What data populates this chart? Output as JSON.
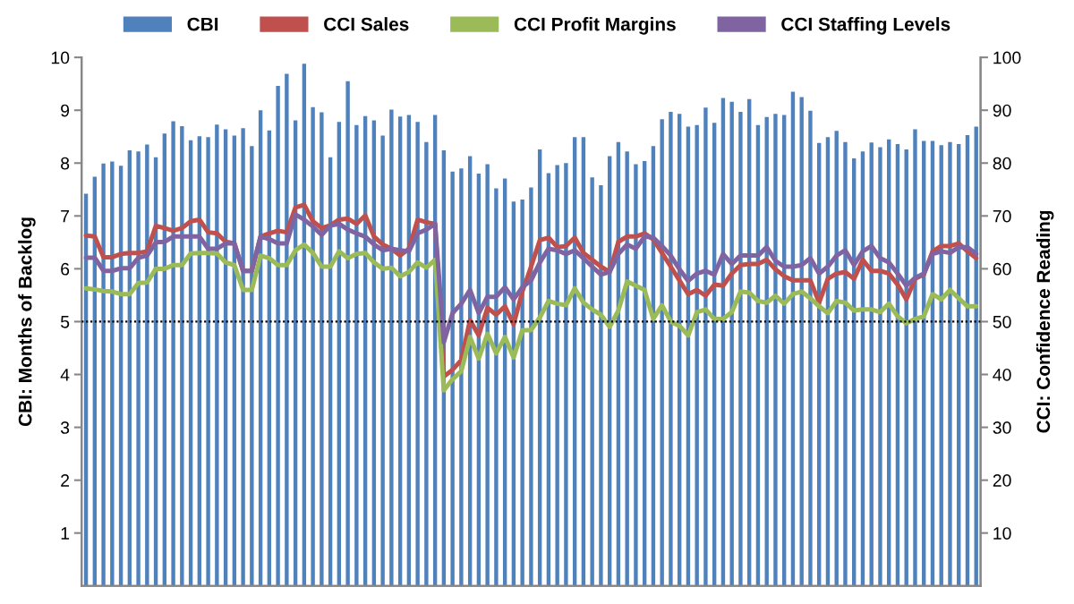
{
  "chart_data": {
    "type": "bar",
    "categories": [
      null,
      null,
      null,
      null,
      null,
      null,
      null,
      null,
      null,
      null,
      null,
      null,
      null,
      null,
      null,
      null,
      null,
      null,
      null,
      null,
      null,
      null,
      null,
      null,
      null,
      null,
      null,
      null,
      null,
      null,
      null,
      null,
      null,
      null,
      null,
      null,
      null,
      null,
      null,
      null,
      null,
      null,
      null,
      null,
      null,
      null,
      null,
      null,
      null,
      null,
      null,
      null,
      null,
      null,
      null,
      null,
      null,
      null,
      null,
      null,
      null,
      null,
      null,
      null,
      null,
      null,
      null,
      null,
      null,
      null,
      null,
      null,
      null,
      null,
      null,
      null,
      null,
      null,
      null,
      null,
      null,
      null,
      null,
      null,
      null,
      null,
      null,
      null,
      null,
      null,
      null,
      null,
      null,
      null,
      null,
      null,
      null,
      null,
      null,
      null,
      null,
      null,
      null
    ],
    "ylabel": "CBI: Months of Backlog",
    "y2label": "CCI: Confidence Reading",
    "ylim": [
      0,
      10
    ],
    "yticks": [
      1,
      2,
      3,
      4,
      5,
      6,
      7,
      8,
      9,
      10
    ],
    "y2lim": [
      0,
      100
    ],
    "y2ticks": [
      10,
      20,
      30,
      40,
      50,
      60,
      70,
      80,
      90,
      100
    ],
    "legend": "top",
    "series": [
      {
        "name": "CBI",
        "color": "#4f81bd",
        "values": [
          7.42,
          7.74,
          7.99,
          8.03,
          7.95,
          8.24,
          8.22,
          8.35,
          8.11,
          8.56,
          8.79,
          8.7,
          8.43,
          8.51,
          8.49,
          8.73,
          8.64,
          8.52,
          8.66,
          8.32,
          9.0,
          8.62,
          9.46,
          9.69,
          8.81,
          9.88,
          9.06,
          8.96,
          8.11,
          8.78,
          9.55,
          8.72,
          8.89,
          8.81,
          8.52,
          9.01,
          8.88,
          8.91,
          8.78,
          8.4,
          8.91,
          8.24,
          7.84,
          7.9,
          8.13,
          7.8,
          7.98,
          7.52,
          7.71,
          7.27,
          7.31,
          7.54,
          8.26,
          7.81,
          7.96,
          8.0,
          8.49,
          8.49,
          7.73,
          7.58,
          8.13,
          8.4,
          8.22,
          7.98,
          8.04,
          8.32,
          8.83,
          8.97,
          8.93,
          8.69,
          8.72,
          9.05,
          8.76,
          9.23,
          9.16,
          8.97,
          9.21,
          8.72,
          8.87,
          8.93,
          8.91,
          9.35,
          9.25,
          8.99,
          8.38,
          8.49,
          8.61,
          8.4,
          8.09,
          8.22,
          8.39,
          8.3,
          8.45,
          8.36,
          8.26,
          8.64,
          8.42,
          8.42,
          8.34,
          8.4,
          8.36,
          8.53,
          8.69
        ]
      },
      {
        "name": "CCI Sales",
        "type": "line",
        "axis": "y2",
        "color": "#c0504d",
        "values": [
          66.3,
          66.1,
          62.2,
          62.2,
          62.8,
          63.0,
          63.0,
          63.3,
          68.1,
          67.7,
          67.2,
          67.7,
          69.0,
          69.3,
          66.9,
          66.7,
          65.1,
          64.8,
          59.6,
          59.6,
          66.1,
          66.7,
          67.2,
          66.9,
          71.6,
          72.1,
          69.0,
          67.7,
          68.2,
          69.3,
          69.5,
          68.5,
          70.1,
          66.1,
          64.6,
          63.8,
          62.5,
          63.8,
          69.3,
          68.8,
          68.5,
          39.6,
          40.9,
          42.7,
          50.3,
          47.4,
          52.6,
          51.3,
          52.9,
          49.5,
          55.7,
          60.4,
          65.4,
          65.9,
          64.1,
          64.3,
          65.9,
          63.0,
          61.7,
          60.4,
          59.4,
          65.1,
          66.1,
          66.1,
          66.7,
          65.6,
          63.0,
          60.4,
          57.8,
          55.2,
          56.0,
          54.9,
          57.0,
          56.8,
          59.1,
          60.7,
          60.9,
          60.9,
          61.7,
          59.9,
          58.6,
          57.8,
          57.8,
          57.8,
          53.6,
          58.1,
          59.1,
          59.4,
          58.1,
          61.7,
          59.6,
          59.6,
          59.1,
          57.0,
          54.2,
          58.1,
          58.9,
          63.3,
          64.3,
          64.3,
          64.8,
          63.3,
          62.0
        ]
      },
      {
        "name": "CCI Profit Margins",
        "type": "line",
        "axis": "y2",
        "color": "#9bbb59",
        "values": [
          56.3,
          56.1,
          55.8,
          55.7,
          55.2,
          55.2,
          57.3,
          57.4,
          60.0,
          60.0,
          60.7,
          60.7,
          62.9,
          63.0,
          63.0,
          62.9,
          61.2,
          60.7,
          56.0,
          56.0,
          62.5,
          62.0,
          60.7,
          60.7,
          63.5,
          64.6,
          63.0,
          60.4,
          60.4,
          63.3,
          62.0,
          62.8,
          63.0,
          61.2,
          60.0,
          60.2,
          58.6,
          59.4,
          61.2,
          60.2,
          61.7,
          37.0,
          39.1,
          40.6,
          47.1,
          43.0,
          47.7,
          44.0,
          47.1,
          43.2,
          48.4,
          48.4,
          50.8,
          53.9,
          53.4,
          53.1,
          56.3,
          53.6,
          52.3,
          51.3,
          49.0,
          52.1,
          57.6,
          56.8,
          56.0,
          50.5,
          53.1,
          50.0,
          49.2,
          47.4,
          51.8,
          52.3,
          50.5,
          50.5,
          51.8,
          55.7,
          55.5,
          53.9,
          53.6,
          54.9,
          53.4,
          55.2,
          55.7,
          54.4,
          52.9,
          51.6,
          53.9,
          53.6,
          52.1,
          52.3,
          52.3,
          51.8,
          53.4,
          51.0,
          49.7,
          50.5,
          51.0,
          55.2,
          54.2,
          56.0,
          54.4,
          52.9,
          52.9
        ]
      },
      {
        "name": "CCI Staffing Levels",
        "type": "line",
        "axis": "y2",
        "color": "#8064a2",
        "values": [
          62.1,
          62.1,
          59.6,
          59.6,
          60.1,
          60.1,
          62.1,
          62.5,
          65.0,
          65.1,
          66.1,
          66.1,
          66.1,
          66.1,
          63.8,
          63.8,
          64.8,
          64.8,
          59.6,
          59.6,
          66.1,
          65.6,
          64.8,
          64.8,
          70.3,
          69.3,
          68.0,
          66.4,
          68.2,
          68.5,
          67.4,
          66.7,
          66.1,
          64.6,
          63.5,
          63.8,
          63.5,
          63.3,
          66.7,
          67.4,
          68.5,
          46.1,
          51.6,
          53.4,
          56.0,
          51.6,
          54.7,
          54.7,
          56.5,
          54.2,
          56.5,
          57.8,
          61.2,
          63.8,
          63.5,
          62.8,
          63.5,
          62.0,
          60.4,
          58.9,
          59.4,
          62.8,
          64.6,
          63.8,
          66.1,
          65.9,
          64.3,
          62.5,
          59.9,
          57.7,
          59.1,
          59.6,
          58.9,
          62.8,
          60.9,
          62.5,
          62.5,
          62.5,
          64.1,
          61.5,
          60.4,
          60.4,
          60.7,
          62.0,
          59.1,
          60.4,
          62.5,
          63.5,
          60.7,
          63.3,
          64.3,
          62.0,
          61.2,
          59.1,
          56.8,
          58.3,
          59.1,
          62.8,
          63.3,
          63.0,
          64.1,
          64.1,
          62.8
        ]
      }
    ],
    "ref_lines": [
      {
        "axis": "y2",
        "value": 50,
        "color": "#000000",
        "line_style": "dotted"
      }
    ]
  }
}
